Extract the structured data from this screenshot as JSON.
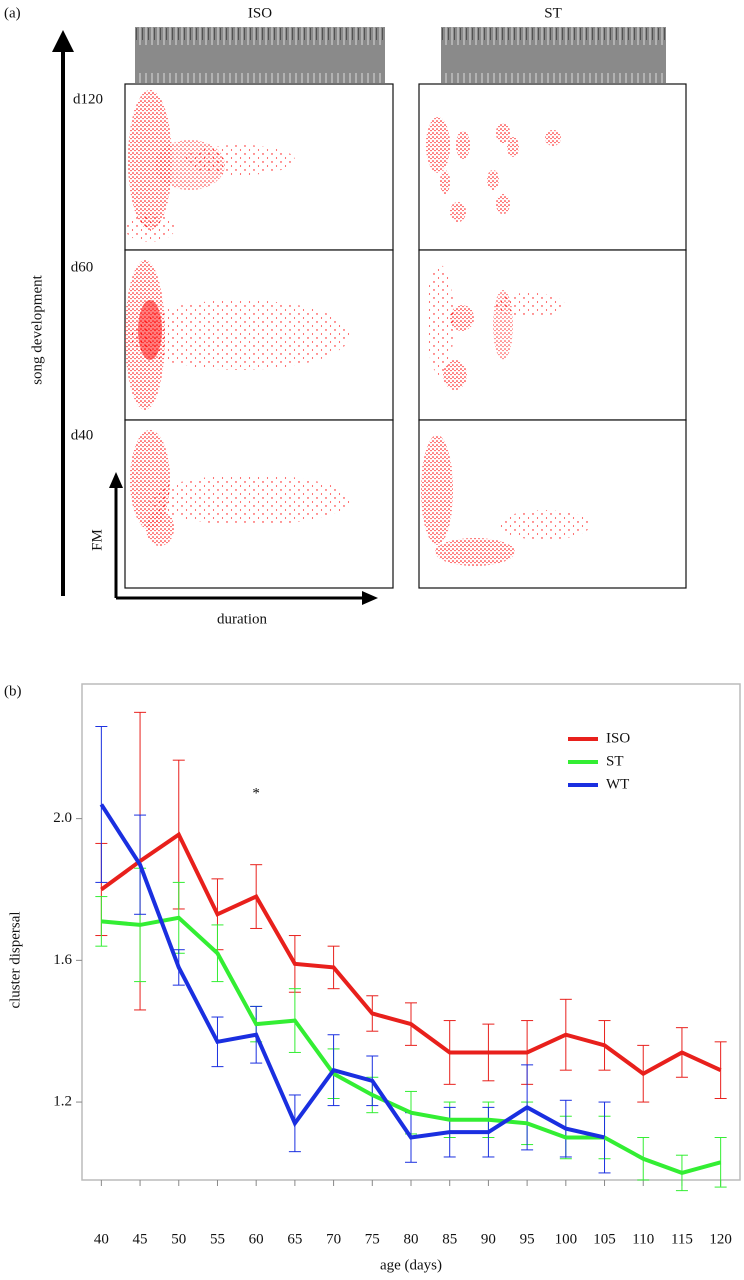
{
  "panel_a": {
    "label": "(a)",
    "columns": [
      "ISO",
      "ST"
    ],
    "rows": [
      "d120",
      "d60",
      "d40"
    ],
    "y_arrow_label": "song development",
    "fm_label": "FM",
    "duration_label": "duration"
  },
  "chart_data": {
    "type": "line",
    "panel_label": "(b)",
    "x": [
      40,
      45,
      50,
      55,
      60,
      65,
      70,
      75,
      80,
      85,
      90,
      95,
      100,
      105,
      110,
      115,
      120
    ],
    "xlim": [
      37.5,
      122.5
    ],
    "xticks": [
      40,
      45,
      50,
      55,
      60,
      65,
      70,
      75,
      80,
      85,
      90,
      95,
      100,
      105,
      110,
      115,
      120
    ],
    "ylim": [
      0.98,
      2.38
    ],
    "yticks": [
      1.2,
      1.6,
      {
        "value": 2,
        "label": "2.0"
      }
    ],
    "x_label": "age (days)",
    "y_label": "cluster dispersal",
    "legend": "upper right",
    "annotations": [
      {
        "text": "*",
        "x": 60,
        "y": 2.07
      }
    ],
    "series": [
      {
        "name": "ISO",
        "color": "#e8201c",
        "values": [
          1.8,
          1.88,
          1.955,
          1.73,
          1.78,
          1.59,
          1.58,
          1.45,
          1.42,
          1.34,
          1.34,
          1.34,
          1.39,
          1.36,
          1.28,
          1.34,
          1.29
        ],
        "errors": [
          0.13,
          0.42,
          0.21,
          0.1,
          0.09,
          0.08,
          0.06,
          0.05,
          0.06,
          0.09,
          0.08,
          0.09,
          0.1,
          0.07,
          0.08,
          0.07,
          0.08
        ]
      },
      {
        "name": "ST",
        "color": "#33ee33",
        "values": [
          1.71,
          1.7,
          1.72,
          1.62,
          1.42,
          1.43,
          1.28,
          1.22,
          1.17,
          1.15,
          1.15,
          1.14,
          1.1,
          1.1,
          1.04,
          1.0,
          1.03
        ],
        "errors": [
          0.07,
          0.16,
          0.1,
          0.08,
          0.05,
          0.09,
          0.07,
          0.05,
          0.06,
          0.05,
          0.05,
          0.06,
          0.06,
          0.06,
          0.06,
          0.05,
          0.07
        ]
      },
      {
        "name": "WT",
        "color": "#1a2fe0",
        "values": [
          2.04,
          1.87,
          1.58,
          1.37,
          1.39,
          1.14,
          1.29,
          1.26,
          1.1,
          1.115,
          1.115,
          1.185,
          1.125,
          1.1,
          null,
          null,
          null
        ],
        "errors": [
          0.22,
          0.14,
          0.05,
          0.07,
          0.08,
          0.08,
          0.1,
          0.07,
          0.07,
          0.07,
          0.07,
          0.12,
          0.08,
          0.1,
          null,
          null,
          null
        ]
      }
    ]
  }
}
